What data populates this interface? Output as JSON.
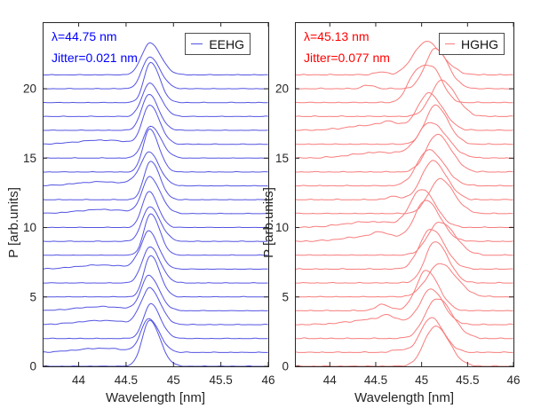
{
  "figure": {
    "background": "#ffffff",
    "axis_color": "#262626",
    "tick_label_color": "#262626"
  },
  "chart_data": [
    {
      "type": "line",
      "panel": "left",
      "legend": "EEHG",
      "annotations": [
        "λ=44.75 nm",
        "Jitter=0.021 nm"
      ],
      "annotation_color": "#0000ff",
      "line_color": "#5353e2",
      "xlabel": "Wavelength [nm]",
      "ylabel": "P [arb.units]",
      "xlim": [
        43.62,
        46
      ],
      "ylim": [
        0,
        24.8
      ],
      "xticks": [
        44,
        44.5,
        45,
        45.5,
        46
      ],
      "xtick_labels": [
        "44",
        "44.5",
        "45",
        "45.5",
        "46"
      ],
      "yticks": [
        0,
        5,
        10,
        15,
        20
      ],
      "ytick_labels": [
        "0",
        "5",
        "10",
        "15",
        "20"
      ],
      "center_wavelength_nm": 44.75,
      "jitter_nm": 0.021,
      "n_traces": 22,
      "offset_step": 1,
      "noise_amp": 0.018,
      "skew": 1.35,
      "tail_amp": 0.3,
      "tail_width": 0.27,
      "tail_shift": -0.5,
      "traces": [
        {
          "offset": 0,
          "center": 44.75,
          "amp": 3.3,
          "width": 0.08
        },
        {
          "offset": 1,
          "center": 44.74,
          "amp": 2.4,
          "width": 0.08,
          "tail": true
        },
        {
          "offset": 2,
          "center": 44.76,
          "amp": 2.5,
          "width": 0.075
        },
        {
          "offset": 3,
          "center": 44.75,
          "amp": 2.6,
          "width": 0.08,
          "tail": true,
          "bumps": [
            [
              44.62,
              0.25,
              0.05
            ]
          ]
        },
        {
          "offset": 4,
          "center": 44.74,
          "amp": 2.5,
          "width": 0.08,
          "tail": true
        },
        {
          "offset": 5,
          "center": 44.76,
          "amp": 3.0,
          "width": 0.07
        },
        {
          "offset": 6,
          "center": 44.75,
          "amp": 2.6,
          "width": 0.08
        },
        {
          "offset": 7,
          "center": 44.74,
          "amp": 2.7,
          "width": 0.075,
          "tail": true,
          "bumps": [
            [
              44.6,
              0.3,
              0.05
            ]
          ]
        },
        {
          "offset": 8,
          "center": 44.76,
          "amp": 3.0,
          "width": 0.07
        },
        {
          "offset": 9,
          "center": 44.75,
          "amp": 2.5,
          "width": 0.08
        },
        {
          "offset": 10,
          "center": 44.74,
          "amp": 2.6,
          "width": 0.07
        },
        {
          "offset": 11,
          "center": 44.75,
          "amp": 2.6,
          "width": 0.08,
          "tail": true
        },
        {
          "offset": 12,
          "center": 44.76,
          "amp": 2.8,
          "width": 0.07
        },
        {
          "offset": 13,
          "center": 44.74,
          "amp": 2.4,
          "width": 0.08,
          "tail": true,
          "bumps": [
            [
              44.58,
              0.25,
              0.05
            ]
          ]
        },
        {
          "offset": 14,
          "center": 44.75,
          "amp": 3.1,
          "width": 0.07
        },
        {
          "offset": 15,
          "center": 44.76,
          "amp": 2.3,
          "width": 0.08
        },
        {
          "offset": 16,
          "center": 44.75,
          "amp": 2.8,
          "width": 0.075,
          "tail": true
        },
        {
          "offset": 17,
          "center": 44.74,
          "amp": 2.6,
          "width": 0.075
        },
        {
          "offset": 18,
          "center": 44.75,
          "amp": 2.4,
          "width": 0.08
        },
        {
          "offset": 19,
          "center": 44.76,
          "amp": 2.9,
          "width": 0.07
        },
        {
          "offset": 20,
          "center": 44.75,
          "amp": 2.3,
          "width": 0.08
        },
        {
          "offset": 21,
          "center": 44.75,
          "amp": 2.3,
          "width": 0.085
        }
      ]
    },
    {
      "type": "line",
      "panel": "right",
      "legend": "HGHG",
      "annotations": [
        "λ=45.13 nm",
        "Jitter=0.077 nm"
      ],
      "annotation_color": "#ff0000",
      "line_color": "#f87c7c",
      "xlabel": "Wavelength [nm]",
      "ylabel": "P [arb.units]",
      "xlim": [
        43.62,
        46
      ],
      "ylim": [
        0,
        24.8
      ],
      "xticks": [
        44,
        44.5,
        45,
        45.5,
        46
      ],
      "xtick_labels": [
        "44",
        "44.5",
        "45",
        "45.5",
        "46"
      ],
      "yticks": [
        0,
        5,
        10,
        15,
        20
      ],
      "ytick_labels": [
        "0",
        "5",
        "10",
        "15",
        "20"
      ],
      "center_wavelength_nm": 45.13,
      "jitter_nm": 0.077,
      "n_traces": 22,
      "offset_step": 1,
      "noise_amp": 0.028,
      "skew": 1.25,
      "tail_amp": 0.42,
      "tail_width": 0.3,
      "tail_shift": -0.55,
      "traces": [
        {
          "offset": 0,
          "center": 45.15,
          "amp": 2.9,
          "width": 0.12
        },
        {
          "offset": 1,
          "center": 45.1,
          "amp": 2.5,
          "width": 0.11,
          "bumps": [
            [
              44.75,
              0.2,
              0.07
            ]
          ]
        },
        {
          "offset": 2,
          "center": 45.17,
          "amp": 2.9,
          "width": 0.13
        },
        {
          "offset": 3,
          "center": 45.1,
          "amp": 2.5,
          "width": 0.11,
          "tail": true,
          "bumps": [
            [
              44.62,
              0.3,
              0.07
            ]
          ]
        },
        {
          "offset": 4,
          "center": 45.05,
          "amp": 2.9,
          "width": 0.11,
          "bumps": [
            [
              44.58,
              0.45,
              0.08
            ]
          ]
        },
        {
          "offset": 5,
          "center": 45.2,
          "amp": 2.4,
          "width": 0.14
        },
        {
          "offset": 6,
          "center": 45.15,
          "amp": 3.0,
          "width": 0.11
        },
        {
          "offset": 7,
          "center": 45.1,
          "amp": 2.9,
          "width": 0.12
        },
        {
          "offset": 8,
          "center": 45.2,
          "amp": 2.4,
          "width": 0.13
        },
        {
          "offset": 9,
          "center": 45.05,
          "amp": 2.9,
          "width": 0.12,
          "tail": true,
          "bumps": [
            [
              44.55,
              0.3,
              0.07
            ]
          ]
        },
        {
          "offset": 10,
          "center": 45.0,
          "amp": 2.7,
          "width": 0.12,
          "tail": true
        },
        {
          "offset": 11,
          "center": 45.2,
          "amp": 2.5,
          "width": 0.12
        },
        {
          "offset": 12,
          "center": 45.12,
          "amp": 2.8,
          "width": 0.12,
          "bumps": [
            [
              44.7,
              0.25,
              0.07
            ]
          ]
        },
        {
          "offset": 13,
          "center": 45.08,
          "amp": 2.6,
          "width": 0.13
        },
        {
          "offset": 14,
          "center": 45.17,
          "amp": 2.7,
          "width": 0.12
        },
        {
          "offset": 15,
          "center": 45.1,
          "amp": 2.5,
          "width": 0.14,
          "tail": true
        },
        {
          "offset": 16,
          "center": 45.15,
          "amp": 2.8,
          "width": 0.11
        },
        {
          "offset": 17,
          "center": 45.08,
          "amp": 2.6,
          "width": 0.12,
          "tail": true,
          "bumps": [
            [
              44.65,
              0.3,
              0.07
            ]
          ]
        },
        {
          "offset": 18,
          "center": 45.22,
          "amp": 2.6,
          "width": 0.12
        },
        {
          "offset": 19,
          "center": 44.95,
          "amp": 2.2,
          "width": 0.1,
          "bumps": [
            [
              45.15,
              1.8,
              0.1
            ]
          ]
        },
        {
          "offset": 20,
          "center": 45.15,
          "amp": 2.9,
          "width": 0.11,
          "bumps": [
            [
              44.42,
              0.25,
              0.07
            ]
          ]
        },
        {
          "offset": 21,
          "center": 45.05,
          "amp": 2.4,
          "width": 0.14,
          "bumps": [
            [
              44.55,
              0.2,
              0.07
            ]
          ]
        }
      ]
    }
  ]
}
